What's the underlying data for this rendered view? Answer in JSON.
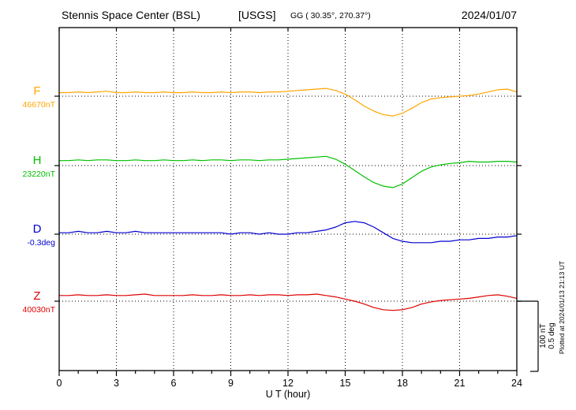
{
  "chart_data": {
    "type": "line",
    "station": "Stennis Space Center (BSL)",
    "agency": "[USGS]",
    "title": "Stennis Space Center (BSL)  [USGS]",
    "geo_coords": "GG ( 30.35°, 270.37°)",
    "date": "2024/01/07",
    "xlabel": "U T (hour)",
    "x_range": [
      0,
      24
    ],
    "x_major_ticks": [
      0,
      3,
      6,
      9,
      12,
      15,
      18,
      21,
      24
    ],
    "x_minor_step": 1,
    "grid": "dotted vertical lines at major ticks; dotted horizontal baseline per trace",
    "scale_bar": {
      "nt_label": "100 nT",
      "deg_label": "0.5 deg"
    },
    "plotted_at": "Plotted at 2024/01/13 21:13 UT",
    "series": [
      {
        "name": "F",
        "baseline_value": "46670nT",
        "unit": "nT",
        "color": "#FFA500",
        "points": [
          [
            0,
            5
          ],
          [
            0.5,
            5
          ],
          [
            1,
            6
          ],
          [
            1.5,
            5
          ],
          [
            2,
            6
          ],
          [
            2.5,
            7
          ],
          [
            3,
            5
          ],
          [
            3.5,
            5
          ],
          [
            4,
            6
          ],
          [
            4.5,
            5
          ],
          [
            5,
            5
          ],
          [
            5.5,
            6
          ],
          [
            6,
            5
          ],
          [
            6.5,
            5
          ],
          [
            7,
            6
          ],
          [
            7.5,
            5
          ],
          [
            8,
            5
          ],
          [
            8.5,
            6
          ],
          [
            9,
            5
          ],
          [
            9.5,
            6
          ],
          [
            10,
            6
          ],
          [
            10.5,
            5
          ],
          [
            11,
            6
          ],
          [
            11.5,
            6
          ],
          [
            12,
            7
          ],
          [
            12.5,
            8
          ],
          [
            13,
            9
          ],
          [
            13.5,
            10
          ],
          [
            14,
            11
          ],
          [
            14.5,
            8
          ],
          [
            15,
            3
          ],
          [
            15.5,
            -5
          ],
          [
            16,
            -14
          ],
          [
            16.5,
            -21
          ],
          [
            17,
            -26
          ],
          [
            17.5,
            -28
          ],
          [
            18,
            -24
          ],
          [
            18.5,
            -17
          ],
          [
            19,
            -9
          ],
          [
            19.5,
            -4
          ],
          [
            20,
            -2
          ],
          [
            20.5,
            -1
          ],
          [
            21,
            0
          ],
          [
            21.5,
            1
          ],
          [
            22,
            3
          ],
          [
            22.5,
            6
          ],
          [
            23,
            9
          ],
          [
            23.5,
            10
          ],
          [
            24,
            6
          ]
        ]
      },
      {
        "name": "H",
        "baseline_value": "23220nT",
        "unit": "nT",
        "color": "#00C000",
        "points": [
          [
            0,
            7
          ],
          [
            0.5,
            7
          ],
          [
            1,
            8
          ],
          [
            1.5,
            7
          ],
          [
            2,
            8
          ],
          [
            2.5,
            8
          ],
          [
            3,
            7
          ],
          [
            3.5,
            7
          ],
          [
            4,
            8
          ],
          [
            4.5,
            7
          ],
          [
            5,
            7
          ],
          [
            5.5,
            8
          ],
          [
            6,
            7
          ],
          [
            6.5,
            7
          ],
          [
            7,
            8
          ],
          [
            7.5,
            7
          ],
          [
            8,
            8
          ],
          [
            8.5,
            8
          ],
          [
            9,
            7
          ],
          [
            9.5,
            8
          ],
          [
            10,
            8
          ],
          [
            10.5,
            7
          ],
          [
            11,
            8
          ],
          [
            11.5,
            8
          ],
          [
            12,
            9
          ],
          [
            12.5,
            10
          ],
          [
            13,
            11
          ],
          [
            13.5,
            12
          ],
          [
            14,
            13
          ],
          [
            14.5,
            9
          ],
          [
            15,
            2
          ],
          [
            15.5,
            -7
          ],
          [
            16,
            -16
          ],
          [
            16.5,
            -24
          ],
          [
            17,
            -29
          ],
          [
            17.5,
            -31
          ],
          [
            18,
            -26
          ],
          [
            18.5,
            -17
          ],
          [
            19,
            -8
          ],
          [
            19.5,
            -2
          ],
          [
            20,
            1
          ],
          [
            20.5,
            3
          ],
          [
            21,
            4
          ],
          [
            21.5,
            6
          ],
          [
            22,
            5
          ],
          [
            22.5,
            5
          ],
          [
            23,
            6
          ],
          [
            23.5,
            6
          ],
          [
            24,
            5
          ]
        ]
      },
      {
        "name": "D",
        "baseline_value": "-0.3deg",
        "unit": "deg",
        "color": "#0000D0",
        "points": [
          [
            0,
            0.01
          ],
          [
            0.5,
            0.01
          ],
          [
            1,
            0.02
          ],
          [
            1.5,
            0.01
          ],
          [
            2,
            0.01
          ],
          [
            2.5,
            0.02
          ],
          [
            3,
            0.01
          ],
          [
            3.5,
            0.01
          ],
          [
            4,
            0.02
          ],
          [
            4.5,
            0.01
          ],
          [
            5,
            0.01
          ],
          [
            5.5,
            0.01
          ],
          [
            6,
            0.01
          ],
          [
            6.5,
            0.01
          ],
          [
            7,
            0.01
          ],
          [
            7.5,
            0.01
          ],
          [
            8,
            0.01
          ],
          [
            8.5,
            0.01
          ],
          [
            9,
            0
          ],
          [
            9.5,
            0.01
          ],
          [
            10,
            0.01
          ],
          [
            10.5,
            0
          ],
          [
            11,
            0.01
          ],
          [
            11.5,
            0
          ],
          [
            12,
            0
          ],
          [
            12.5,
            0.01
          ],
          [
            13,
            0.01
          ],
          [
            13.5,
            0.02
          ],
          [
            14,
            0.03
          ],
          [
            14.5,
            0.05
          ],
          [
            15,
            0.08
          ],
          [
            15.5,
            0.09
          ],
          [
            16,
            0.08
          ],
          [
            16.5,
            0.05
          ],
          [
            17,
            0.01
          ],
          [
            17.5,
            -0.03
          ],
          [
            18,
            -0.05
          ],
          [
            18.5,
            -0.06
          ],
          [
            19,
            -0.06
          ],
          [
            19.5,
            -0.06
          ],
          [
            20,
            -0.05
          ],
          [
            20.5,
            -0.05
          ],
          [
            21,
            -0.04
          ],
          [
            21.5,
            -0.04
          ],
          [
            22,
            -0.03
          ],
          [
            22.5,
            -0.03
          ],
          [
            23,
            -0.02
          ],
          [
            23.5,
            -0.02
          ],
          [
            24,
            -0.01
          ]
        ]
      },
      {
        "name": "Z",
        "baseline_value": "40030nT",
        "unit": "nT",
        "color": "#E00000",
        "points": [
          [
            0,
            8
          ],
          [
            0.5,
            8
          ],
          [
            1,
            9
          ],
          [
            1.5,
            8
          ],
          [
            2,
            8
          ],
          [
            2.5,
            9
          ],
          [
            3,
            8
          ],
          [
            3.5,
            8
          ],
          [
            4,
            9
          ],
          [
            4.5,
            10
          ],
          [
            5,
            8
          ],
          [
            5.5,
            8
          ],
          [
            6,
            8
          ],
          [
            6.5,
            8
          ],
          [
            7,
            9
          ],
          [
            7.5,
            8
          ],
          [
            8,
            8
          ],
          [
            8.5,
            9
          ],
          [
            9,
            8
          ],
          [
            9.5,
            8
          ],
          [
            10,
            9
          ],
          [
            10.5,
            8
          ],
          [
            11,
            9
          ],
          [
            11.5,
            9
          ],
          [
            12,
            8
          ],
          [
            12.5,
            9
          ],
          [
            13,
            9
          ],
          [
            13.5,
            10
          ],
          [
            14,
            8
          ],
          [
            14.5,
            6
          ],
          [
            15,
            3
          ],
          [
            15.5,
            0
          ],
          [
            16,
            -4
          ],
          [
            16.5,
            -9
          ],
          [
            17,
            -12
          ],
          [
            17.5,
            -13
          ],
          [
            18,
            -12
          ],
          [
            18.5,
            -9
          ],
          [
            19,
            -4
          ],
          [
            19.5,
            -1
          ],
          [
            20,
            1
          ],
          [
            20.5,
            2
          ],
          [
            21,
            3
          ],
          [
            21.5,
            4
          ],
          [
            22,
            6
          ],
          [
            22.5,
            8
          ],
          [
            23,
            9
          ],
          [
            23.5,
            7
          ],
          [
            24,
            4
          ]
        ]
      }
    ]
  }
}
